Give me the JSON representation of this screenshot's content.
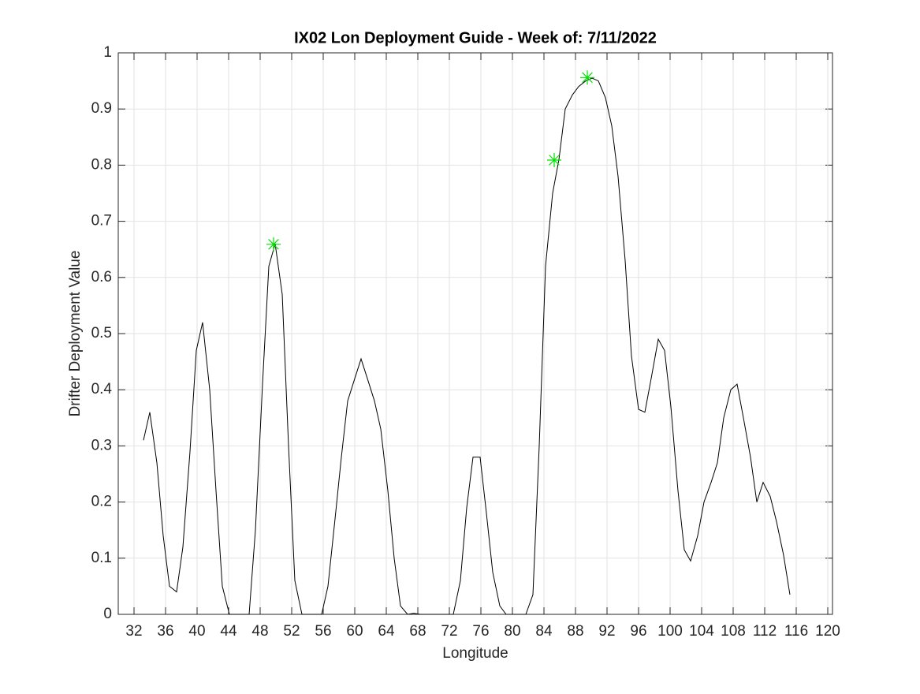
{
  "chart_data": {
    "type": "line",
    "title": "IX02 Lon Deployment Guide - Week of: 7/11/2022",
    "x_label": "Longitude",
    "y_label": "Drifter Deployment Value",
    "xlim": [
      30,
      120.6
    ],
    "ylim": [
      0,
      1
    ],
    "xticks": [
      32,
      36,
      40,
      44,
      48,
      52,
      56,
      60,
      64,
      68,
      72,
      76,
      80,
      84,
      88,
      92,
      96,
      100,
      104,
      108,
      112,
      116,
      120
    ],
    "yticks": [
      0,
      0.1,
      0.2,
      0.3,
      0.4,
      0.5,
      0.6,
      0.7,
      0.8,
      0.9,
      1
    ],
    "grid": true,
    "series": [
      {
        "color": "#000000",
        "marker": "none",
        "x": [
          33.2,
          34.0,
          34.9,
          35.7,
          36.5,
          37.4,
          38.2,
          39.1,
          39.9,
          40.7,
          41.6,
          42.4,
          43.2,
          44.1,
          44.9,
          45.8,
          46.6,
          47.4,
          48.3,
          49.1,
          49.9,
          50.8,
          51.6,
          52.4,
          53.3,
          54.1,
          55.0,
          55.8,
          56.6,
          57.5,
          58.3,
          59.1,
          60.0,
          60.8,
          61.6,
          62.5,
          63.3,
          64.2,
          65.0,
          65.8,
          66.7,
          67.5,
          68.3,
          69.2,
          70.0,
          70.9,
          71.7,
          72.5,
          73.4,
          74.2,
          75.0,
          75.9,
          76.7,
          77.5,
          78.4,
          79.2,
          80.1,
          80.9,
          81.7,
          82.6,
          83.4,
          84.2,
          85.1,
          85.9,
          86.7,
          87.6,
          88.4,
          89.3,
          90.1,
          90.9,
          91.8,
          92.6,
          93.4,
          94.3,
          95.1,
          96.0,
          96.8,
          97.6,
          98.5,
          99.3,
          100.1,
          101.0,
          101.8,
          102.6,
          103.5,
          104.3,
          105.2,
          106.0,
          106.8,
          107.7,
          108.5,
          109.3,
          110.2,
          111.0,
          111.8,
          112.7,
          113.5,
          114.4,
          115.2
        ],
        "values": [
          0.31,
          0.36,
          0.27,
          0.14,
          0.05,
          0.04,
          0.12,
          0.29,
          0.47,
          0.52,
          0.4,
          0.22,
          0.05,
          0,
          0,
          0,
          0,
          0.15,
          0.41,
          0.62,
          0.66,
          0.57,
          0.3,
          0.06,
          0,
          0,
          0,
          0,
          0.05,
          0.17,
          0.28,
          0.38,
          0.42,
          0.455,
          0.42,
          0.38,
          0.33,
          0.22,
          0.1,
          0.015,
          0,
          0.002,
          0,
          0,
          0,
          0,
          0,
          0,
          0.06,
          0.19,
          0.28,
          0.28,
          0.18,
          0.075,
          0.015,
          0,
          0,
          0,
          0,
          0.035,
          0.3,
          0.62,
          0.75,
          0.81,
          0.9,
          0.925,
          0.94,
          0.95,
          0.955,
          0.95,
          0.92,
          0.87,
          0.78,
          0.63,
          0.46,
          0.365,
          0.36,
          0.42,
          0.49,
          0.47,
          0.37,
          0.22,
          0.115,
          0.095,
          0.14,
          0.2,
          0.235,
          0.27,
          0.35,
          0.4,
          0.41,
          0.35,
          0.28,
          0.2,
          0.235,
          0.21,
          0.165,
          0.105,
          0.035
        ]
      },
      {
        "color": "#00e000",
        "marker": "*",
        "x": [
          49.7,
          85.3,
          89.5
        ],
        "values": [
          0.659,
          0.809,
          0.956
        ]
      }
    ]
  }
}
